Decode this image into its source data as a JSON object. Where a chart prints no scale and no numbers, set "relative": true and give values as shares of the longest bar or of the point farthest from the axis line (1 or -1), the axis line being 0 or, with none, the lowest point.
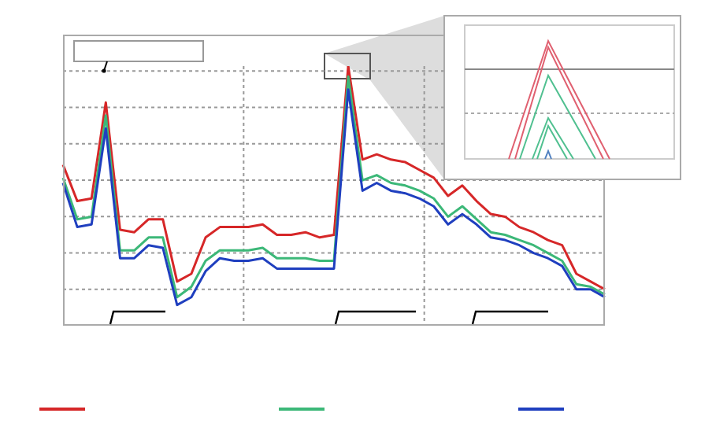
{
  "chart_data": {
    "type": "line",
    "relative": true,
    "grid": true,
    "marker": "none",
    "line_style": "solid",
    "categories": [
      null,
      null,
      null,
      null,
      null,
      null,
      null,
      null,
      null,
      null,
      null,
      null,
      null,
      null,
      null,
      null,
      null,
      null,
      null,
      null,
      null,
      null,
      null,
      null,
      null,
      null,
      null,
      null,
      null,
      null,
      null,
      null,
      null,
      null,
      null,
      null,
      null,
      null,
      null
    ],
    "series": [
      {
        "color": "#d62728",
        "values": [
          0.62,
          0.48,
          0.49,
          0.86,
          0.37,
          0.36,
          0.41,
          0.41,
          0.17,
          0.2,
          0.34,
          0.38,
          0.38,
          0.38,
          0.39,
          0.35,
          0.35,
          0.36,
          0.34,
          0.35,
          1,
          0.64,
          0.66,
          0.64,
          0.63,
          0.6,
          0.57,
          0.5,
          0.54,
          0.48,
          0.43,
          0.42,
          0.38,
          0.36,
          0.33,
          0.31,
          0.2,
          0.17,
          0.14
        ]
      },
      {
        "color": "#3cb878",
        "values": [
          0.57,
          0.41,
          0.42,
          0.81,
          0.29,
          0.29,
          0.34,
          0.34,
          0.11,
          0.15,
          0.25,
          0.29,
          0.29,
          0.29,
          0.3,
          0.26,
          0.26,
          0.26,
          0.25,
          0.25,
          0.96,
          0.56,
          0.58,
          0.55,
          0.54,
          0.52,
          0.49,
          0.42,
          0.46,
          0.41,
          0.36,
          0.35,
          0.33,
          0.31,
          0.28,
          0.25,
          0.16,
          0.15,
          0.12
        ]
      },
      {
        "color": "#1f3fbf",
        "values": [
          0.55,
          0.38,
          0.39,
          0.76,
          0.26,
          0.26,
          0.31,
          0.3,
          0.08,
          0.11,
          0.21,
          0.26,
          0.25,
          0.25,
          0.26,
          0.22,
          0.22,
          0.22,
          0.22,
          0.22,
          0.91,
          0.52,
          0.55,
          0.52,
          0.51,
          0.49,
          0.46,
          0.39,
          0.43,
          0.39,
          0.34,
          0.33,
          0.31,
          0.28,
          0.26,
          0.23,
          0.14,
          0.14,
          0.11
        ]
      }
    ]
  }
}
